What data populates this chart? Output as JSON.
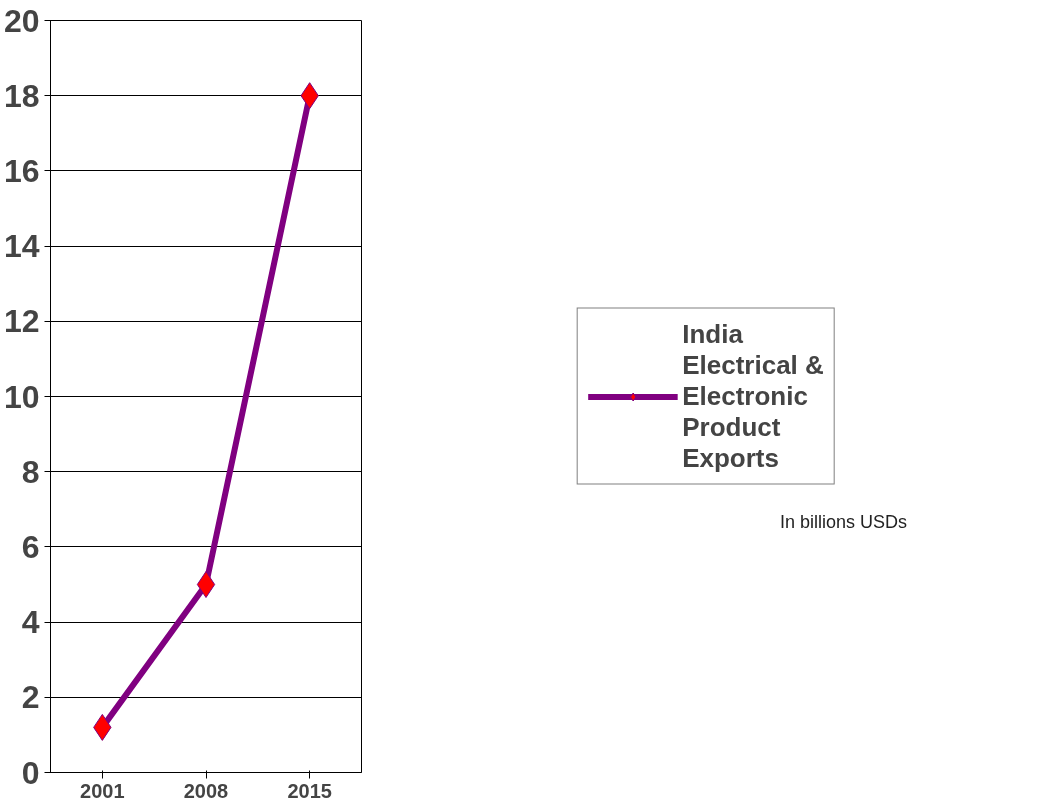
{
  "chart_data": {
    "type": "line",
    "categories": [
      "2001",
      "2008",
      "2015"
    ],
    "series": [
      {
        "name": "India Electrical & Electronic Product Exports",
        "color": "#800080",
        "values": [
          1.2,
          5,
          18
        ]
      }
    ],
    "ylim": [
      0,
      20
    ],
    "yticks": [
      0,
      2,
      4,
      6,
      8,
      10,
      12,
      14,
      16,
      18,
      20
    ],
    "grid": "y",
    "legend": "right",
    "marker": "diamond",
    "line_style": "solid",
    "annotations": [
      "In billions USDs"
    ]
  }
}
